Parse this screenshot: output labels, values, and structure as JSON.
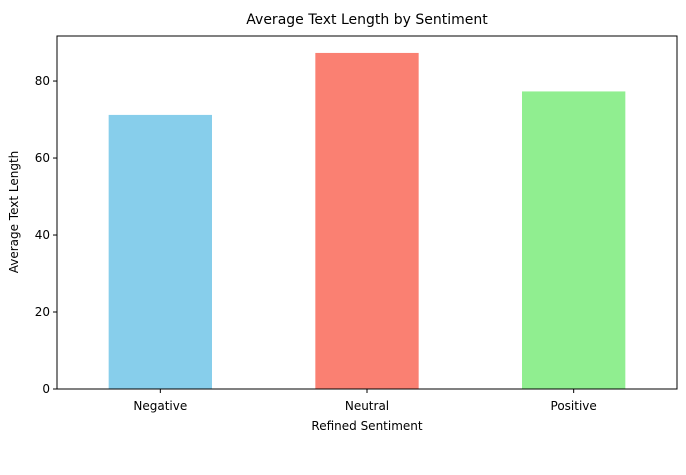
{
  "chart_data": {
    "type": "bar",
    "title": "Average Text Length by Sentiment",
    "xlabel": "Refined Sentiment",
    "ylabel": "Average Text Length",
    "categories": [
      "Negative",
      "Neutral",
      "Positive"
    ],
    "values": [
      71.2,
      87.3,
      77.3
    ],
    "colors": [
      "#87ceeb",
      "#fa8072",
      "#90ee90"
    ],
    "ylim": [
      0,
      91.7
    ],
    "yticks": [
      0,
      20,
      40,
      60,
      80
    ],
    "grid": false,
    "legend": "none"
  }
}
